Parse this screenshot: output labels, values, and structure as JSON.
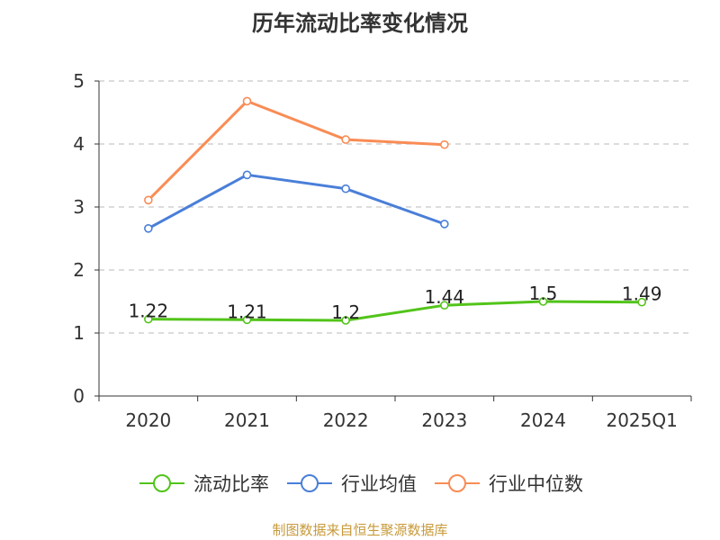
{
  "chart_data": {
    "type": "line",
    "title": "历年流动比率变化情况",
    "categories": [
      "2020",
      "2021",
      "2022",
      "2023",
      "2024",
      "2025Q1"
    ],
    "y_ticks": [
      "0",
      "1",
      "2",
      "3",
      "4",
      "5"
    ],
    "ylim": [
      0,
      5
    ],
    "grid": "horizontal-dashed",
    "legend_position": "bottom",
    "series": [
      {
        "name": "流动比率",
        "color": "#52c41a",
        "values": [
          1.22,
          1.21,
          1.2,
          1.44,
          1.5,
          1.49
        ],
        "labels": [
          "1.22",
          "1.21",
          "1.2",
          "1.44",
          "1.5",
          "1.49"
        ]
      },
      {
        "name": "行业均值",
        "color": "#4a7fd8",
        "values": [
          2.66,
          3.51,
          3.29,
          2.73,
          null,
          null
        ]
      },
      {
        "name": "行业中位数",
        "color": "#f98c55",
        "values": [
          3.11,
          4.68,
          4.07,
          3.99,
          null,
          null
        ]
      }
    ]
  },
  "source_text": "制图数据来自恒生聚源数据库"
}
